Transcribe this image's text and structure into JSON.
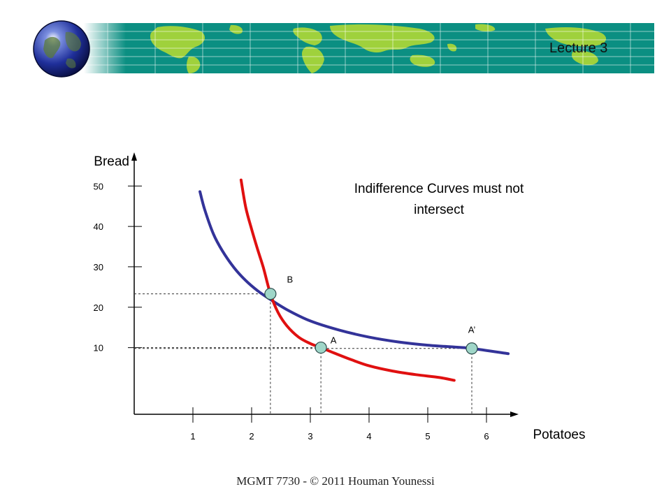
{
  "header": {
    "lecture_label": "Lecture 3"
  },
  "footer": {
    "text": "MGMT 7730 - © 2011 Houman Younessi"
  },
  "colors": {
    "banner": "#0b8f82",
    "land": "#9fd13c",
    "axis": "#000000",
    "blue_curve": "#333399",
    "red_curve": "#e01010",
    "point_fill": "#9fd6c8",
    "point_stroke": "#2b4a4a"
  },
  "icons": {
    "globe": "globe-icon",
    "world_map": "world-map-icon"
  },
  "chart_data": {
    "type": "line",
    "title": "",
    "annotation_lines": [
      "Indifference Curves must not",
      "intersect"
    ],
    "xlabel": "Potatoes",
    "ylabel": "Bread",
    "xlim": [
      0,
      6.5
    ],
    "ylim": [
      -6.5,
      58
    ],
    "x_ticks": [
      1,
      2,
      3,
      4,
      5,
      6
    ],
    "y_ticks": [
      10,
      20,
      30,
      40,
      50
    ],
    "grid": false,
    "legend": "none",
    "series": [
      {
        "color": "#333399",
        "x": [
          1.12,
          1.2,
          1.35,
          1.5,
          1.7,
          1.9,
          2.1,
          2.3,
          2.6,
          3.0,
          3.5,
          4.0,
          4.5,
          5.0,
          5.5,
          5.75,
          6.37
        ],
        "y": [
          48.6,
          44.2,
          38.1,
          34.0,
          29.8,
          26.6,
          24.1,
          22.1,
          19.4,
          16.6,
          14.3,
          12.6,
          11.4,
          10.6,
          10.1,
          9.8,
          8.5
        ]
      },
      {
        "color": "#e01010",
        "x": [
          1.82,
          1.9,
          2.0,
          2.1,
          2.2,
          2.32,
          2.45,
          2.6,
          2.8,
          3.0,
          3.18,
          3.4,
          3.7,
          4.0,
          4.4,
          4.8,
          5.2,
          5.45
        ],
        "y": [
          51.5,
          44.7,
          39.3,
          34.4,
          29.8,
          23.3,
          18.7,
          15.4,
          12.6,
          11.0,
          10.0,
          8.7,
          7.0,
          5.5,
          4.2,
          3.3,
          2.6,
          1.9
        ]
      }
    ],
    "points": [
      {
        "label": "B",
        "x": 2.32,
        "y": 23.3
      },
      {
        "label": "A",
        "x": 3.18,
        "y": 10.0
      },
      {
        "label": "A’",
        "x": 5.75,
        "y": 9.8
      }
    ]
  }
}
